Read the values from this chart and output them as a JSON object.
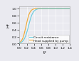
{
  "title": "",
  "xlabel": "t*",
  "ylabel": "H*",
  "xlim": [
    0.0,
    1.4
  ],
  "ylim": [
    0.0,
    1.05
  ],
  "xscale": "linear",
  "line1_label": "Circuit resistance",
  "line2_label": "Head supplied by pump",
  "line1_color": "#66ccdd",
  "line2_color": "#f0a830",
  "line1_lw": 0.8,
  "line2_lw": 0.8,
  "background_color": "#eaeaf0",
  "legend_fontsize": 3.0,
  "axis_fontsize": 4.0,
  "tick_fontsize": 3.2,
  "grid_color": "#ffffff",
  "yticks": [
    0.0,
    0.2,
    0.4,
    0.6,
    0.8,
    1.0
  ],
  "xticks": [
    0.0,
    0.2,
    0.4,
    0.6,
    0.8,
    1.0,
    1.2,
    1.4
  ],
  "hline_y": 1.0,
  "hline_color": "#888888"
}
